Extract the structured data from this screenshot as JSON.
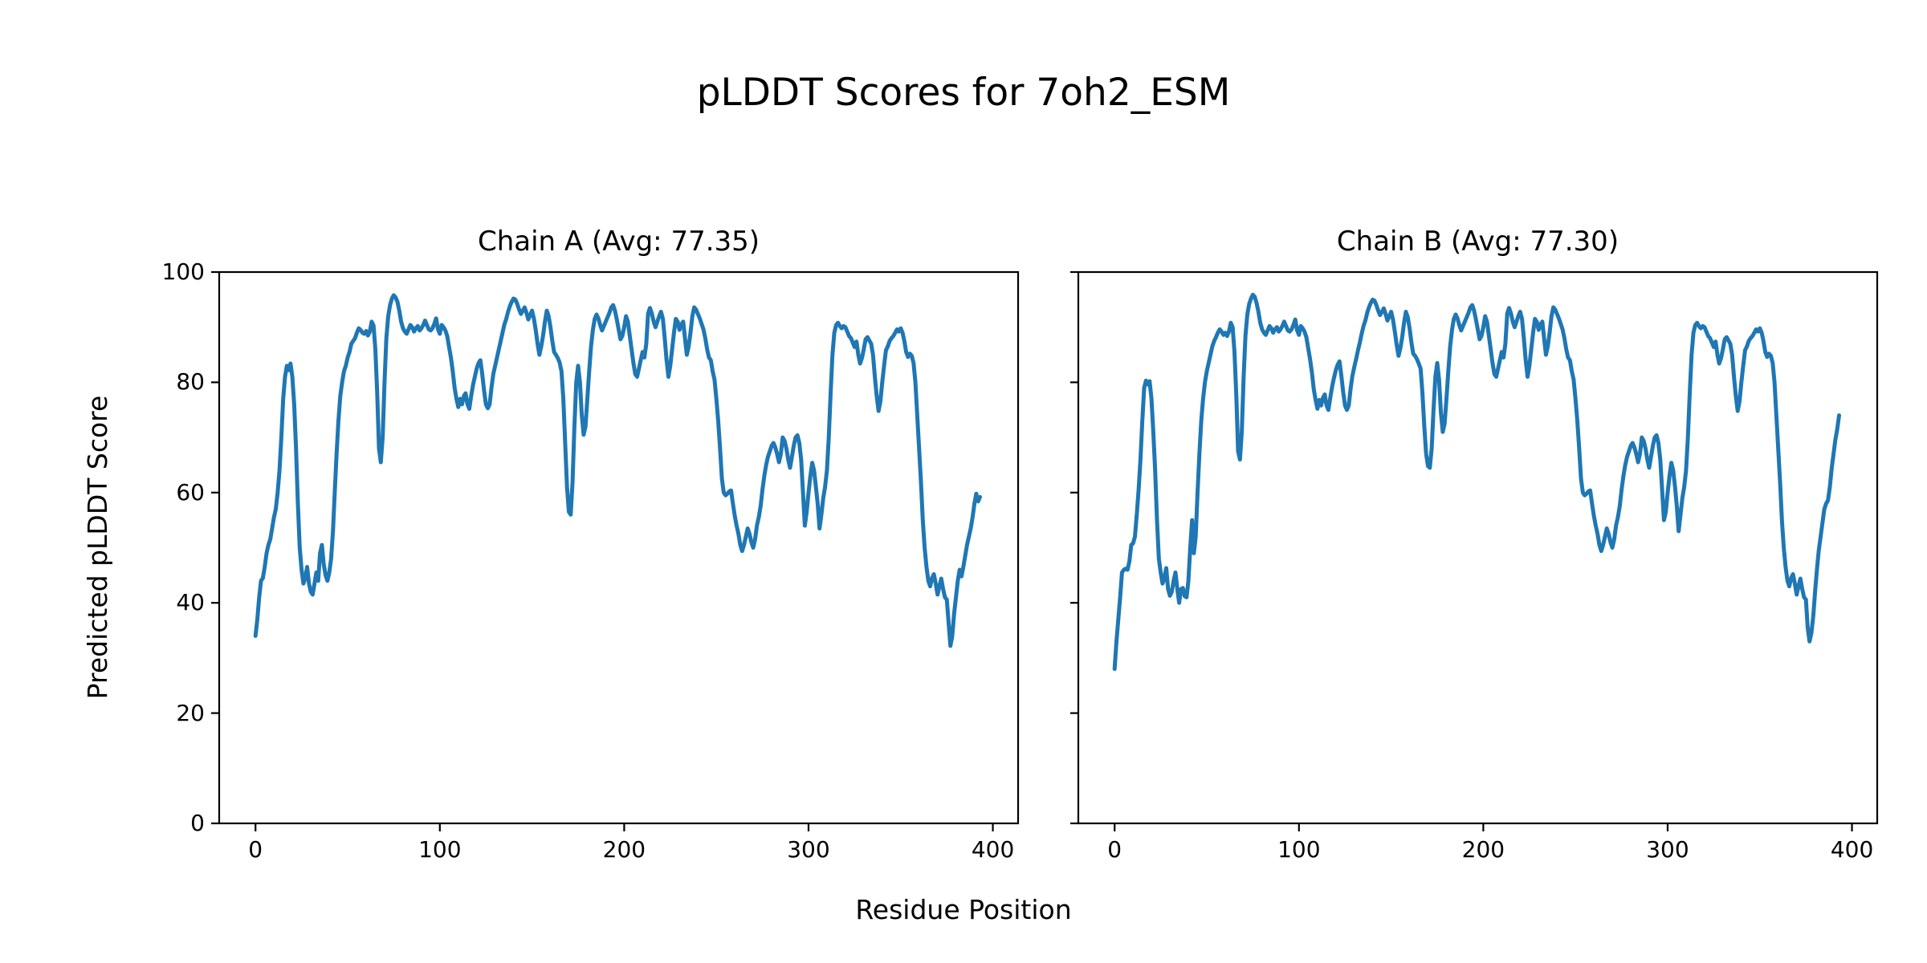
{
  "figure": {
    "title": "pLDDT Scores for 7oh2_ESM",
    "xlabel": "Residue Position",
    "ylabel": "Predicted pLDDT Score",
    "line_color": "#1f77b4",
    "axis_color": "#000000",
    "background": "#ffffff"
  },
  "chart_data": [
    {
      "type": "line",
      "name": "Chain A",
      "title": "Chain A (Avg: 77.35)",
      "avg": 77.35,
      "legend": "none",
      "grid": false,
      "xlim": [
        -19.7,
        413.7
      ],
      "ylim": [
        0,
        100
      ],
      "xticks": [
        0,
        100,
        200,
        300,
        400
      ],
      "yticks": [
        0,
        20,
        40,
        60,
        80,
        100
      ],
      "x_start": 0,
      "x_step": 1,
      "y": [
        34,
        37,
        41,
        44,
        44.5,
        46.5,
        49,
        50.5,
        51.5,
        53.5,
        55.5,
        57,
        60,
        64,
        70,
        77,
        81,
        83,
        82.2,
        83.4,
        81,
        76,
        68,
        58,
        50,
        46,
        43.5,
        44.5,
        46.5,
        43.5,
        42,
        41.5,
        43.5,
        45.5,
        44,
        49,
        50.5,
        47,
        45,
        44,
        45.5,
        48,
        53,
        60,
        67,
        73,
        77.5,
        80,
        82,
        83,
        84.5,
        85.5,
        87,
        87.5,
        88,
        89,
        89.8,
        89.5,
        89,
        88.8,
        89.3,
        88.5,
        89.2,
        91,
        90.3,
        86,
        78,
        68,
        65.5,
        70,
        80,
        88,
        92,
        94,
        95.2,
        95.8,
        95.4,
        94.6,
        93,
        91,
        89.8,
        89.2,
        88.8,
        89.6,
        90.4,
        90,
        89.2,
        89.8,
        90.2,
        89.4,
        89.8,
        90.4,
        91.2,
        90.4,
        89.6,
        89.4,
        89.8,
        90.6,
        91.6,
        89.6,
        88.8,
        90.4,
        90,
        89.4,
        88.4,
        86.4,
        84.5,
        82,
        79,
        77,
        75.5,
        77,
        76,
        77.5,
        78,
        76,
        75.2,
        77.5,
        79.5,
        81,
        82.5,
        83.5,
        84,
        81.5,
        78.5,
        76,
        75.3,
        76,
        79,
        81.5,
        83,
        84.5,
        86,
        87.5,
        89,
        90.5,
        91.5,
        92.8,
        93.8,
        94.6,
        95.2,
        95,
        94.2,
        93.2,
        92.4,
        93,
        93.6,
        92.6,
        91.4,
        92.2,
        93,
        91.6,
        89.5,
        87,
        85,
        86.5,
        88.5,
        91,
        93,
        92,
        90,
        87.5,
        85.5,
        85,
        84.4,
        83.6,
        82,
        77,
        69,
        61,
        56.5,
        56,
        62,
        72,
        80,
        83,
        80,
        74,
        70.5,
        72,
        77,
        82,
        86.5,
        89.5,
        91.5,
        92.3,
        91.6,
        90.4,
        89.4,
        90.2,
        91,
        91.8,
        92.6,
        93.6,
        94,
        93,
        91.4,
        89.6,
        87.8,
        88.4,
        90,
        92,
        91,
        88.5,
        86,
        83.5,
        81.5,
        81,
        82.5,
        84,
        85.5,
        84.5,
        87,
        92.5,
        93.5,
        92.5,
        91,
        90,
        91,
        92,
        92.8,
        91.5,
        88,
        84,
        81,
        83,
        86,
        89,
        91.5,
        91,
        89.5,
        90.5,
        91,
        88,
        85,
        86.5,
        89,
        92,
        93.6,
        93.2,
        92.4,
        91.6,
        90.6,
        89.6,
        88,
        86,
        84.5,
        84,
        82,
        80.5,
        77,
        73,
        68,
        62.5,
        60,
        59.5,
        59.8,
        60.2,
        60.4,
        58,
        55.8,
        54,
        52.5,
        50.5,
        49.4,
        50.5,
        52,
        53.5,
        52.5,
        51,
        50,
        51.5,
        54,
        55.5,
        57.5,
        60.5,
        63,
        65,
        66.5,
        67.5,
        68.5,
        69,
        68.2,
        67,
        65.5,
        67,
        70,
        69.4,
        68,
        66,
        64.5,
        66.5,
        68.5,
        70,
        70.4,
        69,
        66,
        60,
        54,
        56.5,
        60,
        63,
        65.4,
        64,
        61,
        58,
        53.5,
        56,
        59,
        61,
        64,
        70,
        78,
        85,
        89,
        90.4,
        90.8,
        90.2,
        89.8,
        90.2,
        90,
        89.2,
        88.4,
        88,
        87.2,
        86.4,
        87.4,
        85,
        83.4,
        84.4,
        86,
        87.8,
        88.2,
        87.6,
        87,
        85,
        81,
        77.5,
        74.8,
        76.5,
        80,
        83,
        85.8,
        86.5,
        87.5,
        88,
        88.4,
        89,
        89.6,
        89.2,
        89.8,
        89,
        87.5,
        85.5,
        84.6,
        85.2,
        84.8,
        83.5,
        80,
        74,
        68,
        62,
        55,
        50,
        46.5,
        44,
        43,
        44.5,
        45.2,
        43.5,
        41.5,
        43,
        44.4,
        42.5,
        41,
        40.6,
        36.5,
        32.2,
        34,
        38,
        41,
        44,
        46,
        44.8,
        46.5,
        48.5,
        50.5,
        52,
        53.5,
        55.5,
        58,
        59.8,
        58.4,
        59.2
      ]
    },
    {
      "type": "line",
      "name": "Chain B",
      "title": "Chain B (Avg: 77.30)",
      "avg": 77.3,
      "legend": "none",
      "grid": false,
      "xlim": [
        -19.7,
        413.7
      ],
      "ylim": [
        0,
        100
      ],
      "xticks": [
        0,
        100,
        200,
        300,
        400
      ],
      "yticks": [
        0,
        20,
        40,
        60,
        80,
        100
      ],
      "x_start": 0,
      "x_step": 1,
      "y": [
        28,
        33,
        37,
        41,
        45.5,
        46,
        46.2,
        46,
        47.5,
        50.5,
        50.8,
        52,
        56,
        60.5,
        66,
        73,
        79,
        80.3,
        79.6,
        80.2,
        77,
        71,
        64,
        55,
        48,
        45.5,
        43.5,
        44.5,
        46.3,
        42.5,
        41.3,
        42,
        44,
        45.5,
        42.5,
        40,
        42.5,
        42.7,
        41.2,
        41,
        44,
        50,
        55,
        49,
        52,
        60,
        67,
        73,
        77,
        80,
        82,
        83.5,
        85,
        86.5,
        87.5,
        88.2,
        89,
        89.6,
        89.2,
        88.6,
        89,
        88.4,
        89.2,
        90.8,
        90,
        85.5,
        77.5,
        67.5,
        66,
        71,
        81,
        88.5,
        92.3,
        94.2,
        95.2,
        95.9,
        95.5,
        94.4,
        92.8,
        90.8,
        89.6,
        89,
        88.6,
        89.4,
        90.2,
        89.8,
        89,
        89.6,
        90,
        89.2,
        89.6,
        90.2,
        91,
        90.2,
        89.4,
        89.2,
        89.6,
        90.4,
        91.4,
        89.4,
        88.6,
        90.2,
        89.8,
        89.2,
        88.2,
        86.2,
        84.2,
        81.8,
        78.8,
        76.8,
        75.2,
        76.8,
        75.8,
        77.2,
        77.8,
        75.8,
        75,
        77.2,
        79.2,
        80.8,
        82.2,
        83.2,
        83.8,
        81.2,
        78.2,
        75.8,
        75,
        75.8,
        78.8,
        81.2,
        82.8,
        84.2,
        85.8,
        87.2,
        88.8,
        90.2,
        91.2,
        92.6,
        93.6,
        94.4,
        95,
        94.8,
        94,
        93,
        92.2,
        92.8,
        93.4,
        92.4,
        91.2,
        92,
        92.8,
        91.4,
        89.2,
        86.8,
        84.8,
        86.2,
        88.2,
        90.8,
        92.8,
        91.8,
        89.8,
        87.2,
        85.2,
        84.8,
        84.2,
        83.4,
        82.5,
        78,
        72,
        67,
        64.8,
        64.5,
        68,
        75,
        81,
        83.5,
        80.5,
        74.5,
        71,
        72.5,
        77,
        82,
        86.5,
        89.5,
        91.5,
        92.3,
        91.6,
        90.4,
        89.4,
        90.2,
        91,
        91.8,
        92.6,
        93.6,
        94,
        93,
        91.4,
        89.6,
        87.8,
        88.4,
        90,
        92,
        91,
        88.5,
        86,
        83.5,
        81.5,
        81,
        82.5,
        84,
        85.5,
        84.5,
        87,
        92.5,
        93.5,
        92.5,
        91,
        90,
        91,
        92,
        92.8,
        91.5,
        88,
        84,
        81,
        83,
        86,
        89,
        91.5,
        91,
        89.5,
        90.5,
        91,
        88,
        85,
        86.5,
        89,
        92,
        93.6,
        93.2,
        92.4,
        91.6,
        90.6,
        89.6,
        88,
        86,
        84.5,
        84,
        82,
        80.5,
        77,
        73,
        68,
        62.5,
        60,
        59.5,
        59.8,
        60.2,
        60.4,
        58,
        55.8,
        54,
        52.5,
        50.5,
        49.4,
        50.5,
        52,
        53.5,
        52.5,
        51,
        50,
        51.5,
        54,
        55.5,
        57.5,
        60.5,
        63,
        65,
        66.5,
        67.5,
        68.5,
        69,
        68.2,
        67,
        65.5,
        67,
        70,
        69.4,
        68,
        66,
        64.5,
        66.5,
        68.5,
        70,
        70.4,
        69,
        66,
        60.5,
        55,
        56.5,
        60,
        63,
        65.4,
        64,
        61,
        57.5,
        53,
        56,
        59,
        61,
        64,
        70,
        78,
        85,
        89,
        90.4,
        90.8,
        90.2,
        89.8,
        90.2,
        90,
        89.2,
        88.4,
        88,
        87.2,
        86.4,
        87.4,
        85,
        83.4,
        84.4,
        86,
        87.8,
        88.2,
        87.6,
        87,
        85,
        81,
        77.5,
        74.8,
        76.5,
        80,
        83,
        85.8,
        86.5,
        87.5,
        88,
        88.4,
        89,
        89.6,
        89.2,
        89.8,
        89,
        87.5,
        85.5,
        84.6,
        85.2,
        84.8,
        83.5,
        80,
        74,
        68,
        62,
        55,
        50,
        46.5,
        44,
        43,
        44.5,
        45.2,
        43.5,
        41.5,
        43,
        44.4,
        42.5,
        41,
        40.6,
        35.5,
        33,
        34.5,
        37.5,
        42,
        46,
        49.5,
        52,
        54.5,
        57,
        58,
        58.6,
        61,
        64.4,
        67,
        69.6,
        71.5,
        74
      ]
    }
  ]
}
